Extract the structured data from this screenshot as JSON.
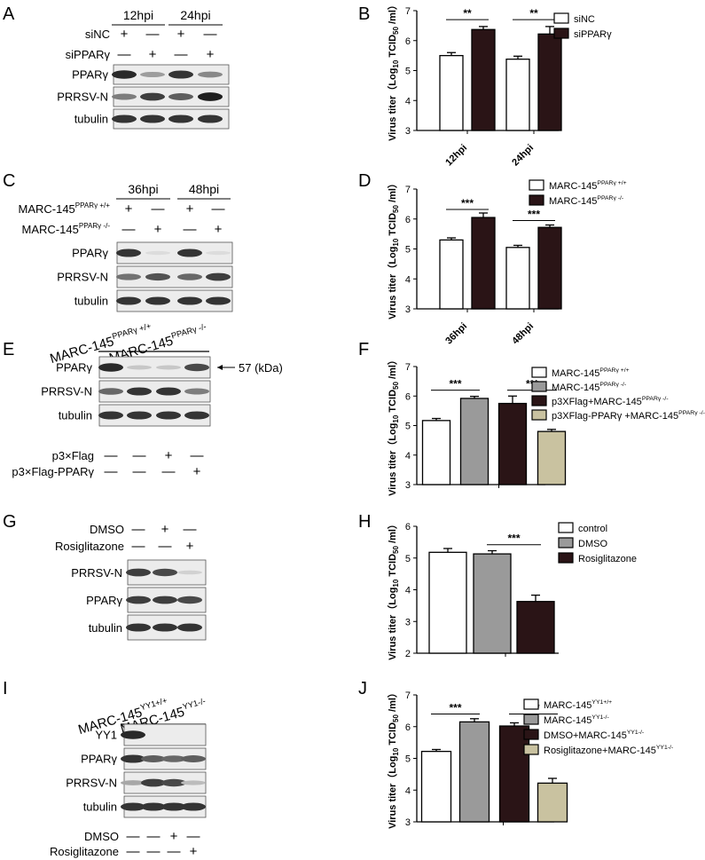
{
  "chart_data": [
    {
      "panel": "B",
      "type": "bar",
      "ylabel_main": "Virus titer（Log",
      "ylabel_sub": "10",
      "ylabel_tail": " TCID",
      "ylabel_sub2": "50",
      "ylabel_end": " /ml）",
      "ylim": [
        3,
        7
      ],
      "yticks": [
        "3",
        "4",
        "5",
        "6",
        "7"
      ],
      "categories": [
        "12hpi",
        "24hpi"
      ],
      "series": [
        {
          "name": "siNC",
          "sup": "",
          "color": "#ffffff",
          "values": [
            5.5,
            5.38
          ],
          "errors": [
            0.1,
            0.1
          ]
        },
        {
          "name": "siPPARγ",
          "sup": "",
          "color": "#2a1416",
          "values": [
            6.37,
            6.22
          ],
          "errors": [
            0.1,
            0.25
          ]
        }
      ],
      "significance": [
        {
          "label": "**",
          "cat": 0,
          "from": 0,
          "to": 1,
          "y": 6.7
        },
        {
          "label": "**",
          "cat": 1,
          "from": 0,
          "to": 1,
          "y": 6.7
        }
      ]
    },
    {
      "panel": "D",
      "type": "bar",
      "ylabel_main": "Virus titer（Log",
      "ylabel_sub": "10",
      "ylabel_tail": " TCID",
      "ylabel_sub2": "50",
      "ylabel_end": " /ml）",
      "ylim": [
        3,
        7
      ],
      "yticks": [
        "3",
        "4",
        "5",
        "6",
        "7"
      ],
      "categories": [
        "36hpi",
        "48hpi"
      ],
      "series": [
        {
          "name": "MARC-145",
          "sup": "PPARγ +/+",
          "color": "#ffffff",
          "values": [
            5.3,
            5.05
          ],
          "errors": [
            0.07,
            0.07
          ]
        },
        {
          "name": "MARC-145",
          "sup": "PPARγ -/-",
          "color": "#2a1416",
          "values": [
            6.05,
            5.72
          ],
          "errors": [
            0.15,
            0.08
          ]
        }
      ],
      "significance": [
        {
          "label": "***",
          "cat": 0,
          "from": 0,
          "to": 1,
          "y": 6.32
        },
        {
          "label": "***",
          "cat": 1,
          "from": 0,
          "to": 1,
          "y": 5.95
        }
      ]
    },
    {
      "panel": "F",
      "type": "bar",
      "ylabel_main": "Virus titer（Log",
      "ylabel_sub": "10",
      "ylabel_tail": " TCID",
      "ylabel_sub2": "50",
      "ylabel_end": " /ml）",
      "ylim": [
        3,
        7
      ],
      "yticks": [
        "3",
        "4",
        "5",
        "6",
        "7"
      ],
      "categories": [
        ""
      ],
      "series": [
        {
          "name": "MARC-145",
          "sup": "PPARγ +/+",
          "color": "#ffffff",
          "values": [
            5.17
          ],
          "errors": [
            0.07
          ]
        },
        {
          "name": "MARC-145",
          "sup": "PPARγ -/-",
          "color": "#9a9a9a",
          "values": [
            5.92
          ],
          "errors": [
            0.07
          ]
        },
        {
          "name": "p3XFlag+MARC-145",
          "sup": "PPARγ -/-",
          "color": "#2a1416",
          "values": [
            5.75
          ],
          "errors": [
            0.25
          ]
        },
        {
          "name": "p3XFlag-PPARγ +MARC-145",
          "sup": "PPARγ -/-",
          "color": "#c9c2a0",
          "values": [
            4.8
          ],
          "errors": [
            0.07
          ]
        }
      ],
      "significance": [
        {
          "label": "***",
          "cat": 0,
          "from": 0,
          "to": 1,
          "y": 6.2
        },
        {
          "label": "***",
          "cat": 0,
          "from": 2,
          "to": 3,
          "y": 6.2
        }
      ]
    },
    {
      "panel": "H",
      "type": "bar",
      "ylabel_main": "Virus titer（Log",
      "ylabel_sub": "10",
      "ylabel_tail": " TCID",
      "ylabel_sub2": "50",
      "ylabel_end": " /ml）",
      "ylim": [
        2,
        6
      ],
      "yticks": [
        "2",
        "3",
        "4",
        "5",
        "6"
      ],
      "categories": [
        ""
      ],
      "series": [
        {
          "name": "control",
          "sup": "",
          "color": "#ffffff",
          "values": [
            5.18
          ],
          "errors": [
            0.12
          ]
        },
        {
          "name": "DMSO",
          "sup": "",
          "color": "#9a9a9a",
          "values": [
            5.13
          ],
          "errors": [
            0.1
          ]
        },
        {
          "name": "Rosiglitazone",
          "sup": "",
          "color": "#2a1416",
          "values": [
            3.63
          ],
          "errors": [
            0.2
          ]
        }
      ],
      "significance": [
        {
          "label": "***",
          "cat": 0,
          "from": 1,
          "to": 2,
          "y": 5.42
        }
      ]
    },
    {
      "panel": "J",
      "type": "bar",
      "ylabel_main": "Virus titer（Log",
      "ylabel_sub": "10",
      "ylabel_tail": " TCID",
      "ylabel_sub2": "50",
      "ylabel_end": " /ml）",
      "ylim": [
        3,
        7
      ],
      "yticks": [
        "3",
        "4",
        "5",
        "6",
        "7"
      ],
      "categories": [
        ""
      ],
      "series": [
        {
          "name": "MARC-145",
          "sup": "YY1+/+",
          "color": "#ffffff",
          "values": [
            5.22
          ],
          "errors": [
            0.06
          ]
        },
        {
          "name": "MARC-145",
          "sup": "YY1-/-",
          "color": "#9a9a9a",
          "values": [
            6.15
          ],
          "errors": [
            0.1
          ]
        },
        {
          "name": "DMSO+MARC-145",
          "sup": "YY1-/-",
          "color": "#2a1416",
          "values": [
            6.02
          ],
          "errors": [
            0.1
          ]
        },
        {
          "name": "Rosiglitazone+MARC-145",
          "sup": "YY1-/-",
          "color": "#c9c2a0",
          "values": [
            4.22
          ],
          "errors": [
            0.15
          ]
        }
      ],
      "significance": [
        {
          "label": "***",
          "cat": 0,
          "from": 0,
          "to": 1,
          "y": 6.4
        },
        {
          "label": "***",
          "cat": 0,
          "from": 2,
          "to": 3,
          "y": 6.4
        }
      ]
    }
  ],
  "blots": [
    {
      "panel": "A",
      "groups": [
        {
          "label": "12hpi",
          "cols": [
            0,
            1
          ]
        },
        {
          "label": "24hpi",
          "cols": [
            2,
            3
          ]
        }
      ],
      "conditions": [
        {
          "label": "siNC",
          "sup": "",
          "signs": [
            "+",
            "—",
            "+",
            "—"
          ]
        },
        {
          "label": "siPPARγ",
          "sup": "",
          "signs": [
            "—",
            "+",
            "—",
            "+"
          ]
        }
      ],
      "rows": [
        {
          "label": "PPARγ",
          "intensity": [
            0.9,
            0.35,
            0.85,
            0.45
          ]
        },
        {
          "label": "PRRSV-N",
          "intensity": [
            0.5,
            0.8,
            0.65,
            0.95
          ]
        },
        {
          "label": "tubulin",
          "intensity": [
            0.85,
            0.85,
            0.85,
            0.85
          ]
        }
      ],
      "bottom_conditions": []
    },
    {
      "panel": "C",
      "groups": [
        {
          "label": "36hpi",
          "cols": [
            0,
            1
          ]
        },
        {
          "label": "48hpi",
          "cols": [
            2,
            3
          ]
        }
      ],
      "conditions": [
        {
          "label": "MARC-145",
          "sup": "PPARγ +/+",
          "signs": [
            "+",
            "—",
            "+",
            "—"
          ]
        },
        {
          "label": "MARC-145",
          "sup": "PPARγ -/-",
          "signs": [
            "—",
            "+",
            "—",
            "+"
          ]
        }
      ],
      "rows": [
        {
          "label": "PPARγ",
          "intensity": [
            0.85,
            0.05,
            0.85,
            0.05
          ]
        },
        {
          "label": "PRRSV-N",
          "intensity": [
            0.55,
            0.7,
            0.6,
            0.8
          ]
        },
        {
          "label": "tubulin",
          "intensity": [
            0.85,
            0.85,
            0.85,
            0.85
          ]
        }
      ],
      "bottom_conditions": []
    },
    {
      "panel": "E",
      "groups": [
        {
          "label": "MARC-145",
          "sup": "PPARγ +/+",
          "cols": [
            0
          ]
        },
        {
          "label": "MARC-145",
          "sup": "PPARγ -/-",
          "cols": [
            1,
            3
          ]
        }
      ],
      "conditions": [],
      "rows": [
        {
          "label": "PPARγ",
          "intensity": [
            0.9,
            0.15,
            0.15,
            0.75
          ]
        },
        {
          "label": "PRRSV-N",
          "intensity": [
            0.6,
            0.85,
            0.85,
            0.5
          ]
        },
        {
          "label": "tubulin",
          "intensity": [
            0.85,
            0.85,
            0.85,
            0.85
          ]
        }
      ],
      "marker": "57 (kDa)",
      "bottom_conditions": [
        {
          "label": "p3×Flag",
          "signs": [
            "—",
            "—",
            "+",
            "—"
          ]
        },
        {
          "label": "p3×Flag-PPARγ",
          "signs": [
            "—",
            "—",
            "—",
            "+"
          ]
        }
      ]
    },
    {
      "panel": "G",
      "groups": [],
      "conditions": [
        {
          "label": "DMSO",
          "sup": "",
          "signs": [
            "—",
            "+",
            "—"
          ]
        },
        {
          "label": "Rosiglitazone",
          "sup": "",
          "signs": [
            "—",
            "—",
            "+"
          ]
        }
      ],
      "rows": [
        {
          "label": "PRRSV-N",
          "intensity": [
            0.8,
            0.75,
            0.1
          ]
        },
        {
          "label": "PPARγ",
          "intensity": [
            0.8,
            0.8,
            0.75
          ]
        },
        {
          "label": "tubulin",
          "intensity": [
            0.85,
            0.85,
            0.85
          ]
        }
      ],
      "bottom_conditions": []
    },
    {
      "panel": "I",
      "groups": [
        {
          "label": "MARC-145",
          "sup": "YY1+/+",
          "cols": [
            0
          ]
        },
        {
          "label": "MARC-145",
          "sup": "YY1-/-",
          "cols": [
            1,
            3
          ]
        }
      ],
      "conditions": [],
      "rows": [
        {
          "label": "YY1",
          "intensity": [
            0.9,
            0.02,
            0.02,
            0.02
          ]
        },
        {
          "label": "PPARγ",
          "intensity": [
            0.85,
            0.65,
            0.6,
            0.65
          ]
        },
        {
          "label": "PRRSV-N",
          "intensity": [
            0.3,
            0.8,
            0.75,
            0.2
          ]
        },
        {
          "label": "tubulin",
          "intensity": [
            0.85,
            0.85,
            0.85,
            0.85
          ]
        }
      ],
      "bottom_conditions": [
        {
          "label": "DMSO",
          "signs": [
            "—",
            "—",
            "+",
            "—"
          ]
        },
        {
          "label": "Rosiglitazone",
          "signs": [
            "—",
            "—",
            "—",
            "+"
          ]
        }
      ]
    }
  ]
}
